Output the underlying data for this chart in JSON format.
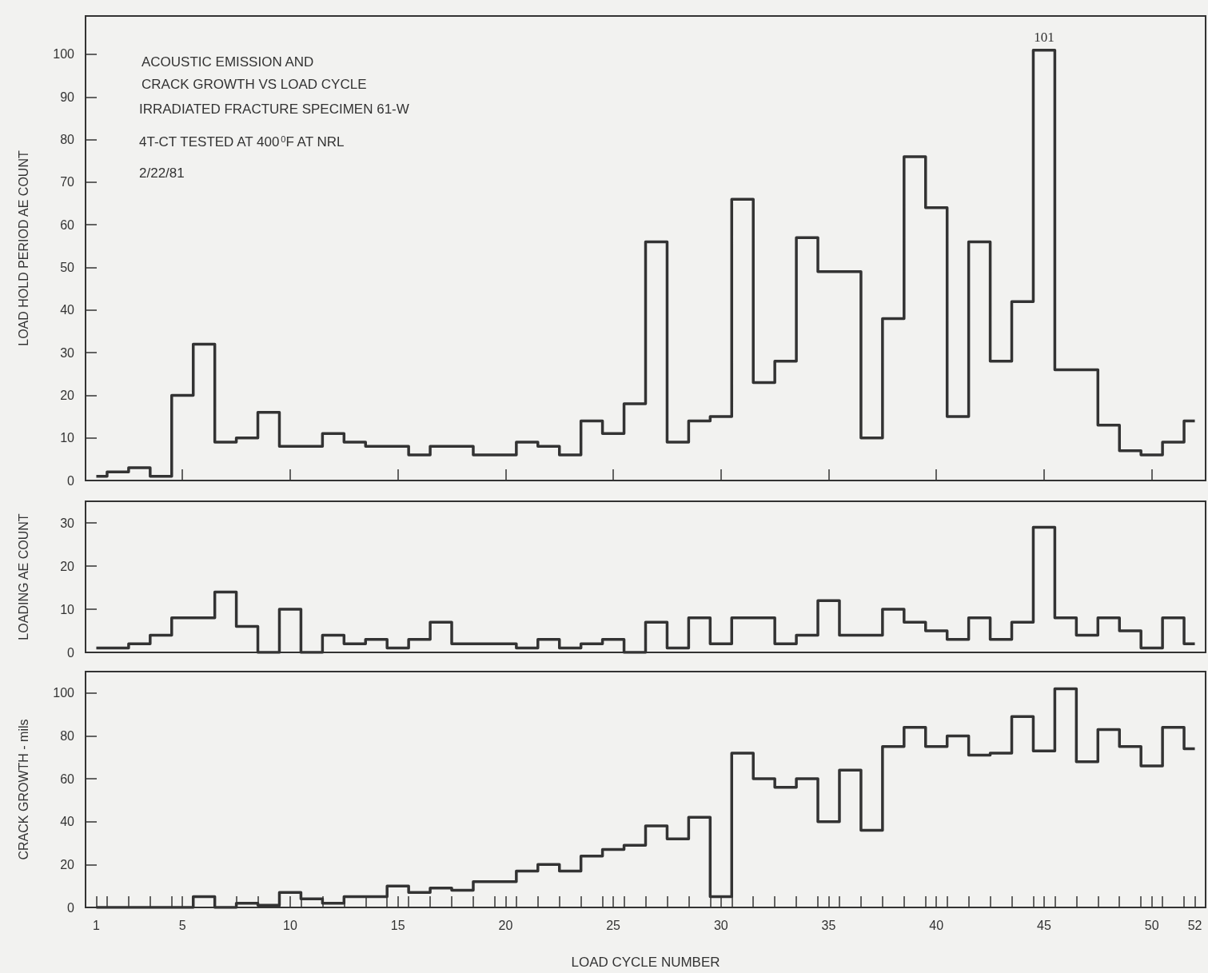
{
  "chart_data": [
    {
      "type": "step",
      "title": "ACOUSTIC EMISSION AND\nCRACK GROWTH VS LOAD CYCLE",
      "annotations": [
        "IRRADIATED FRACTURE SPECIMEN 61-W",
        "4T-CT TESTED AT 400$^{0}$F AT NRL",
        "2/22/81"
      ],
      "ylabel": "LOAD HOLD PERIOD AE COUNT",
      "x": [
        1,
        2,
        3,
        4,
        5,
        6,
        7,
        8,
        9,
        10,
        11,
        12,
        13,
        14,
        15,
        16,
        17,
        18,
        19,
        20,
        21,
        22,
        23,
        24,
        25,
        26,
        27,
        28,
        29,
        30,
        31,
        32,
        33,
        34,
        35,
        36,
        37,
        38,
        39,
        40,
        41,
        42,
        43,
        44,
        45,
        46,
        47,
        48,
        49,
        50,
        51,
        52
      ],
      "series": [
        {
          "color": "#333333",
          "values": [
            1,
            2,
            3,
            1,
            20,
            32,
            9,
            10,
            16,
            8,
            8,
            11,
            9,
            8,
            8,
            6,
            8,
            8,
            6,
            6,
            9,
            8,
            6,
            14,
            11,
            18,
            56,
            9,
            14,
            15,
            66,
            23,
            28,
            57,
            49,
            49,
            10,
            38,
            76,
            64,
            15,
            56,
            28,
            42,
            101,
            26,
            26,
            13,
            7,
            6,
            9,
            14
          ],
          "value_labels": [
            null,
            null,
            null,
            null,
            null,
            null,
            null,
            null,
            null,
            null,
            null,
            null,
            null,
            null,
            null,
            null,
            null,
            null,
            null,
            null,
            null,
            null,
            null,
            null,
            null,
            null,
            null,
            null,
            null,
            null,
            null,
            null,
            null,
            null,
            null,
            null,
            null,
            null,
            null,
            null,
            null,
            null,
            null,
            null,
            "101",
            null,
            null,
            null,
            null,
            null,
            null,
            null
          ]
        }
      ],
      "xlim": [
        0.5,
        52.5
      ],
      "ylim": [
        0,
        109
      ],
      "xticks": [
        {
          "value": 5,
          "label": null
        },
        {
          "value": 10,
          "label": null
        },
        {
          "value": 15,
          "label": null
        },
        {
          "value": 20,
          "label": null
        },
        {
          "value": 25,
          "label": null
        },
        {
          "value": 30,
          "label": null
        },
        {
          "value": 35,
          "label": null
        },
        {
          "value": 40,
          "label": null
        },
        {
          "value": 45,
          "label": null
        },
        {
          "value": 50,
          "label": null
        }
      ],
      "yticks": [
        0,
        10,
        20,
        30,
        40,
        50,
        60,
        70,
        80,
        90,
        100
      ],
      "tick_labels": "y",
      "marker": "none",
      "line_style": "solid"
    },
    {
      "type": "step",
      "ylabel": "LOADING AE COUNT",
      "x": [
        1,
        2,
        3,
        4,
        5,
        6,
        7,
        8,
        9,
        10,
        11,
        12,
        13,
        14,
        15,
        16,
        17,
        18,
        19,
        20,
        21,
        22,
        23,
        24,
        25,
        26,
        27,
        28,
        29,
        30,
        31,
        32,
        33,
        34,
        35,
        36,
        37,
        38,
        39,
        40,
        41,
        42,
        43,
        44,
        45,
        46,
        47,
        48,
        49,
        50,
        51,
        52
      ],
      "series": [
        {
          "color": "#333333",
          "values": [
            1,
            1,
            2,
            4,
            8,
            8,
            14,
            6,
            0,
            10,
            0,
            4,
            2,
            3,
            1,
            3,
            7,
            2,
            2,
            2,
            1,
            3,
            1,
            2,
            3,
            0,
            7,
            1,
            8,
            2,
            8,
            8,
            2,
            4,
            12,
            4,
            4,
            10,
            7,
            5,
            3,
            8,
            3,
            7,
            29,
            8,
            4,
            8,
            5,
            1,
            8,
            2
          ]
        }
      ],
      "xlim": [
        0.5,
        52.5
      ],
      "ylim": [
        0,
        35
      ],
      "yticks": [
        0,
        10,
        20,
        30
      ],
      "tick_labels": "y",
      "marker": "none",
      "line_style": "solid"
    },
    {
      "type": "step",
      "xlabel": "LOAD CYCLE NUMBER",
      "ylabel": "CRACK GROWTH - mils",
      "x": [
        1,
        2,
        3,
        4,
        5,
        6,
        7,
        8,
        9,
        10,
        11,
        12,
        13,
        14,
        15,
        16,
        17,
        18,
        19,
        20,
        21,
        22,
        23,
        24,
        25,
        26,
        27,
        28,
        29,
        30,
        31,
        32,
        33,
        34,
        35,
        36,
        37,
        38,
        39,
        40,
        41,
        42,
        43,
        44,
        45,
        46,
        47,
        48,
        49,
        50,
        51,
        52
      ],
      "series": [
        {
          "color": "#333333",
          "values": [
            0,
            0,
            0,
            0,
            0,
            5,
            0,
            2,
            1,
            7,
            4,
            2,
            5,
            5,
            10,
            7,
            9,
            8,
            12,
            12,
            17,
            20,
            17,
            24,
            27,
            29,
            38,
            32,
            42,
            5,
            72,
            60,
            56,
            60,
            40,
            64,
            36,
            75,
            84,
            75,
            80,
            71,
            72,
            89,
            73,
            102,
            68,
            83,
            75,
            66,
            84,
            74
          ]
        }
      ],
      "xlim": [
        0.5,
        52.5
      ],
      "ylim": [
        0,
        110
      ],
      "xticks": [
        1,
        {
          "value": 1.5,
          "label": null
        },
        {
          "value": 2.5,
          "label": null
        },
        {
          "value": 3.5,
          "label": null
        },
        {
          "value": 4.5,
          "label": null
        },
        5,
        {
          "value": 5.5,
          "label": null
        },
        {
          "value": 6.5,
          "label": null
        },
        {
          "value": 7.5,
          "label": null
        },
        {
          "value": 8.5,
          "label": null
        },
        {
          "value": 9.5,
          "label": null
        },
        10,
        {
          "value": 10.5,
          "label": null
        },
        {
          "value": 11.5,
          "label": null
        },
        {
          "value": 12.5,
          "label": null
        },
        {
          "value": 13.5,
          "label": null
        },
        {
          "value": 14.5,
          "label": null
        },
        15,
        {
          "value": 15.5,
          "label": null
        },
        {
          "value": 16.5,
          "label": null
        },
        {
          "value": 17.5,
          "label": null
        },
        {
          "value": 18.5,
          "label": null
        },
        {
          "value": 19.5,
          "label": null
        },
        20,
        {
          "value": 20.5,
          "label": null
        },
        {
          "value": 21.5,
          "label": null
        },
        {
          "value": 22.5,
          "label": null
        },
        {
          "value": 23.5,
          "label": null
        },
        {
          "value": 24.5,
          "label": null
        },
        25,
        {
          "value": 25.5,
          "label": null
        },
        {
          "value": 26.5,
          "label": null
        },
        {
          "value": 27.5,
          "label": null
        },
        {
          "value": 28.5,
          "label": null
        },
        {
          "value": 29.5,
          "label": null
        },
        30,
        {
          "value": 30.5,
          "label": null
        },
        {
          "value": 31.5,
          "label": null
        },
        {
          "value": 32.5,
          "label": null
        },
        {
          "value": 33.5,
          "label": null
        },
        {
          "value": 34.5,
          "label": null
        },
        35,
        {
          "value": 35.5,
          "label": null
        },
        {
          "value": 36.5,
          "label": null
        },
        {
          "value": 37.5,
          "label": null
        },
        {
          "value": 38.5,
          "label": null
        },
        {
          "value": 39.5,
          "label": null
        },
        40,
        {
          "value": 40.5,
          "label": null
        },
        {
          "value": 41.5,
          "label": null
        },
        {
          "value": 42.5,
          "label": null
        },
        {
          "value": 43.5,
          "label": null
        },
        {
          "value": 44.5,
          "label": null
        },
        45,
        {
          "value": 45.5,
          "label": null
        },
        {
          "value": 46.5,
          "label": null
        },
        {
          "value": 47.5,
          "label": null
        },
        {
          "value": 48.5,
          "label": null
        },
        {
          "value": 49.5,
          "label": null
        },
        50,
        {
          "value": 50.5,
          "label": null
        },
        {
          "value": 51.5,
          "label": null
        },
        52
      ],
      "yticks": [
        0,
        20,
        40,
        60,
        80,
        100
      ],
      "marker": "none",
      "line_style": "solid"
    }
  ]
}
